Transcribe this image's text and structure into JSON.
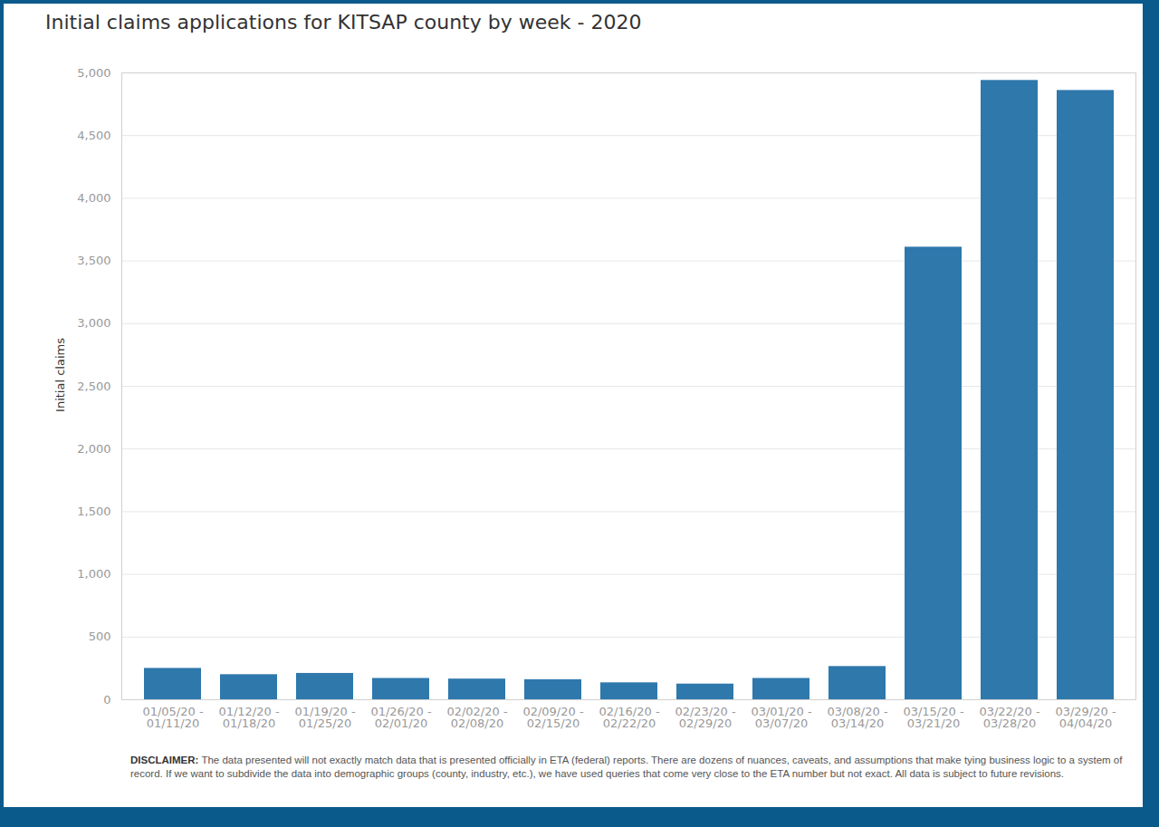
{
  "chart_data": {
    "type": "bar",
    "title": "Initial claims applications for KITSAP county by week - 2020",
    "y_label": "Initial claims",
    "caption_label": "DISCLAIMER:",
    "caption": "The data presented will not exactly match data that is presented officially in ETA (federal) reports. There are dozens of nuances, caveats, and assumptions that make tying business logic to a system of record. If we want to subdivide the data into demographic groups (county, industry, etc.), we have used queries that come very close to the ETA number but not exact.  All data is subject to future revisions.",
    "categories": [
      "01/05/20 -\n01/11/20",
      "01/12/20 -\n01/18/20",
      "01/19/20 -\n01/25/20",
      "01/26/20 -\n02/01/20",
      "02/02/20 -\n02/08/20",
      "02/09/20 -\n02/15/20",
      "02/16/20 -\n02/22/20",
      "02/23/20 -\n02/29/20",
      "03/01/20 -\n03/07/20",
      "03/08/20 -\n03/14/20",
      "03/15/20 -\n03/21/20",
      "03/22/20 -\n03/28/20",
      "03/29/20 -\n04/04/20"
    ],
    "values": [
      250,
      200,
      210,
      170,
      165,
      160,
      135,
      125,
      170,
      265,
      3610,
      4940,
      4860
    ],
    "color": "#2e78ac",
    "ylim": [
      0,
      5000
    ],
    "yticks": [
      0,
      500,
      1000,
      1500,
      2000,
      2500,
      3000,
      3500,
      4000,
      4500,
      5000
    ],
    "grid": true
  }
}
